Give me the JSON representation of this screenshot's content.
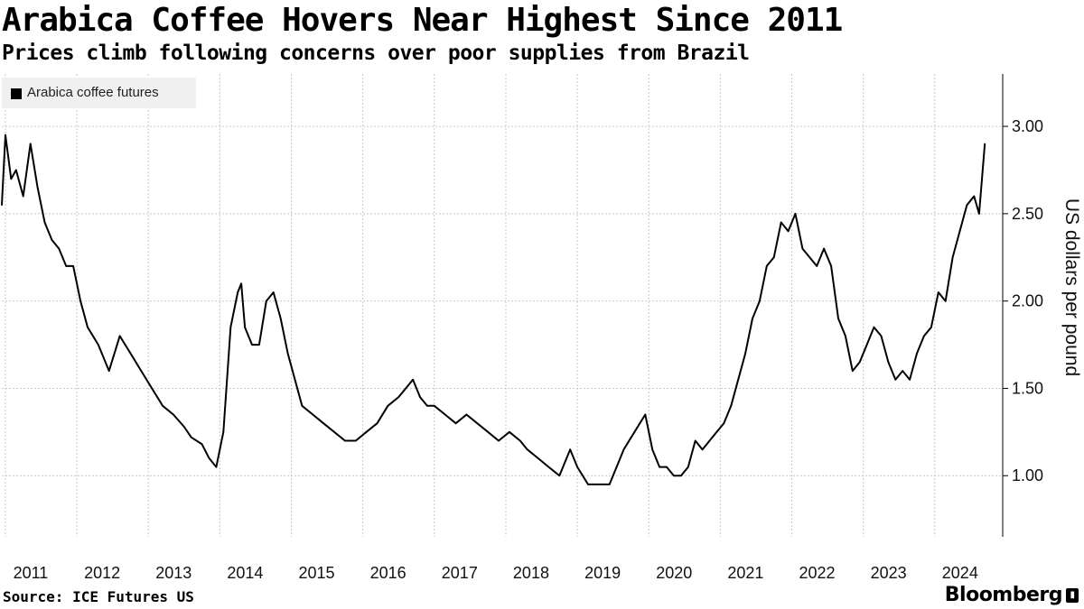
{
  "header": {
    "title": "Arabica Coffee Hovers Near Highest Since 2011",
    "subtitle": "Prices climb following concerns over poor supplies from Brazil"
  },
  "footer": {
    "source": "Source: ICE Futures US",
    "brand": "Bloomberg",
    "brand_icon": "bloomberg-terminal-icon"
  },
  "colors": {
    "series": "#000000",
    "grid": "#c8c8c8",
    "legend_bg": "#f0f0f0"
  },
  "chart_data": {
    "type": "line",
    "title": "Arabica Coffee Hovers Near Highest Since 2011",
    "subtitle": "Prices climb following concerns over poor supplies from Brazil",
    "xlabel": "",
    "ylabel": "US dollars per pound",
    "y_axis_side": "right",
    "ylim": [
      0.65,
      3.3
    ],
    "xlim": [
      2010.95,
      2024.95
    ],
    "yticks": [
      1.0,
      1.5,
      2.0,
      2.5,
      3.0
    ],
    "ytick_labels": [
      "1.00",
      "1.50",
      "2.00",
      "2.50",
      "3.00"
    ],
    "xticks": [
      2011,
      2012,
      2013,
      2014,
      2015,
      2016,
      2017,
      2018,
      2019,
      2020,
      2021,
      2022,
      2023,
      2024
    ],
    "xtick_labels": [
      "2011",
      "2012",
      "2013",
      "2014",
      "2015",
      "2016",
      "2017",
      "2018",
      "2019",
      "2020",
      "2021",
      "2022",
      "2023",
      "2024"
    ],
    "grid": true,
    "legend_position": "top-left",
    "series": [
      {
        "name": "Arabica coffee futures",
        "color": "#000000",
        "x": [
          2010.95,
          2011.0,
          2011.08,
          2011.15,
          2011.25,
          2011.35,
          2011.45,
          2011.55,
          2011.65,
          2011.75,
          2011.85,
          2011.95,
          2012.05,
          2012.15,
          2012.3,
          2012.45,
          2012.6,
          2012.75,
          2012.9,
          2013.05,
          2013.2,
          2013.35,
          2013.5,
          2013.6,
          2013.75,
          2013.85,
          2013.95,
          2014.05,
          2014.15,
          2014.25,
          2014.3,
          2014.35,
          2014.45,
          2014.55,
          2014.65,
          2014.75,
          2014.85,
          2014.95,
          2015.05,
          2015.15,
          2015.3,
          2015.45,
          2015.6,
          2015.75,
          2015.9,
          2016.05,
          2016.2,
          2016.35,
          2016.5,
          2016.6,
          2016.7,
          2016.8,
          2016.9,
          2017.0,
          2017.15,
          2017.3,
          2017.45,
          2017.6,
          2017.75,
          2017.9,
          2018.05,
          2018.2,
          2018.3,
          2018.45,
          2018.6,
          2018.75,
          2018.9,
          2019.0,
          2019.15,
          2019.3,
          2019.45,
          2019.55,
          2019.65,
          2019.8,
          2019.95,
          2020.05,
          2020.15,
          2020.25,
          2020.35,
          2020.45,
          2020.55,
          2020.65,
          2020.75,
          2020.85,
          2020.95,
          2021.05,
          2021.15,
          2021.25,
          2021.35,
          2021.45,
          2021.55,
          2021.65,
          2021.75,
          2021.85,
          2021.95,
          2022.05,
          2022.15,
          2022.25,
          2022.35,
          2022.45,
          2022.55,
          2022.65,
          2022.75,
          2022.85,
          2022.95,
          2023.05,
          2023.15,
          2023.25,
          2023.35,
          2023.45,
          2023.55,
          2023.65,
          2023.75,
          2023.85,
          2023.95,
          2024.05,
          2024.15,
          2024.25,
          2024.35,
          2024.45,
          2024.55,
          2024.62,
          2024.7
        ],
        "y": [
          2.55,
          2.95,
          2.7,
          2.75,
          2.6,
          2.9,
          2.65,
          2.45,
          2.35,
          2.3,
          2.2,
          2.2,
          2.0,
          1.85,
          1.75,
          1.6,
          1.8,
          1.7,
          1.6,
          1.5,
          1.4,
          1.35,
          1.28,
          1.22,
          1.18,
          1.1,
          1.05,
          1.25,
          1.85,
          2.05,
          2.1,
          1.85,
          1.75,
          1.75,
          2.0,
          2.05,
          1.9,
          1.7,
          1.55,
          1.4,
          1.35,
          1.3,
          1.25,
          1.2,
          1.2,
          1.25,
          1.3,
          1.4,
          1.45,
          1.5,
          1.55,
          1.45,
          1.4,
          1.4,
          1.35,
          1.3,
          1.35,
          1.3,
          1.25,
          1.2,
          1.25,
          1.2,
          1.15,
          1.1,
          1.05,
          1.0,
          1.15,
          1.05,
          0.95,
          0.95,
          0.95,
          1.05,
          1.15,
          1.25,
          1.35,
          1.15,
          1.05,
          1.05,
          1.0,
          1.0,
          1.05,
          1.2,
          1.15,
          1.2,
          1.25,
          1.3,
          1.4,
          1.55,
          1.7,
          1.9,
          2.0,
          2.2,
          2.25,
          2.45,
          2.4,
          2.5,
          2.3,
          2.25,
          2.2,
          2.3,
          2.2,
          1.9,
          1.8,
          1.6,
          1.65,
          1.75,
          1.85,
          1.8,
          1.65,
          1.55,
          1.6,
          1.55,
          1.7,
          1.8,
          1.85,
          2.05,
          2.0,
          2.25,
          2.4,
          2.55,
          2.6,
          2.5,
          2.9
        ]
      }
    ]
  }
}
